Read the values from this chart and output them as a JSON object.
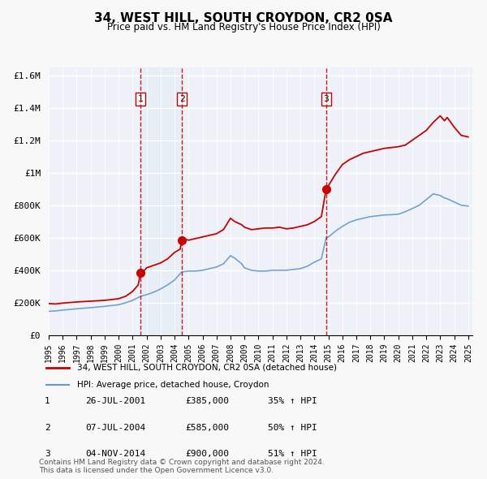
{
  "title": "34, WEST HILL, SOUTH CROYDON, CR2 0SA",
  "subtitle": "Price paid vs. HM Land Registry's House Price Index (HPI)",
  "legend_line1": "34, WEST HILL, SOUTH CROYDON, CR2 0SA (detached house)",
  "legend_line2": "HPI: Average price, detached house, Croydon",
  "transactions": [
    {
      "num": 1,
      "date": "26-JUL-2001",
      "price": 385000,
      "pct": "35%",
      "dir": "↑",
      "label": "HPI",
      "year": 2001.57
    },
    {
      "num": 2,
      "date": "07-JUL-2004",
      "price": 585000,
      "pct": "50%",
      "dir": "↑",
      "label": "HPI",
      "year": 2004.52
    },
    {
      "num": 3,
      "date": "04-NOV-2014",
      "price": 900000,
      "pct": "51%",
      "dir": "↑",
      "label": "HPI",
      "year": 2014.84
    }
  ],
  "footer": "Contains HM Land Registry data © Crown copyright and database right 2024.\nThis data is licensed under the Open Government Licence v3.0.",
  "ylim": [
    0,
    1650000
  ],
  "yticks": [
    0,
    200000,
    400000,
    600000,
    800000,
    1000000,
    1200000,
    1400000,
    1600000
  ],
  "ytick_labels": [
    "£0",
    "£200K",
    "£400K",
    "£600K",
    "£800K",
    "£1M",
    "£1.2M",
    "£1.4M",
    "£1.6M"
  ],
  "xlim_start": 1995.0,
  "xlim_end": 2025.3,
  "background_color": "#f0f4fa",
  "plot_bg_color": "#eef2f8",
  "grid_color": "#ffffff",
  "red_line_color": "#cc0000",
  "blue_line_color": "#6699cc",
  "dashed_line_color": "#cc0000",
  "highlight_color": "#dce8f5"
}
